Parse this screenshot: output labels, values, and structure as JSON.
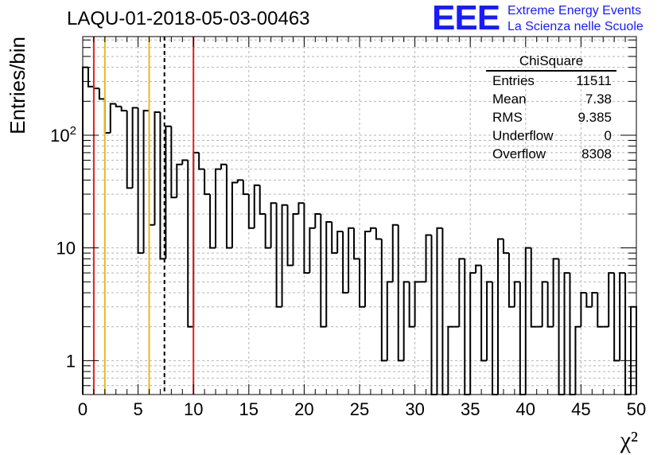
{
  "header": {
    "run_title": "LAQU-01-2018-05-03-00463",
    "logo_mark": "EEE",
    "logo_line1": "Extreme Energy Events",
    "logo_line2": "La Scienza nelle Scuole"
  },
  "stats_box": {
    "title": "ChiSquare",
    "rows": [
      {
        "label": "Entries",
        "value": "11511"
      },
      {
        "label": "Mean",
        "value": "7.38"
      },
      {
        "label": "RMS",
        "value": "9.385"
      },
      {
        "label": "Underflow",
        "value": "0"
      },
      {
        "label": "Overflow",
        "value": "8308"
      }
    ]
  },
  "colors": {
    "histogram": "#000000",
    "red_lines": "#e0201b",
    "yellow_lines": "#e8b820",
    "mean_line": "#000000",
    "grid": "#b4b4b4"
  },
  "chart_data": {
    "type": "histogram",
    "ylabel": "Entries/bin",
    "xlabel": "χ²",
    "xlim": [
      0,
      50
    ],
    "ylim": [
      0.5,
      750
    ],
    "y_scale": "log",
    "grid": true,
    "bin_width": 0.5,
    "x_ticks": [
      0,
      5,
      10,
      15,
      20,
      25,
      30,
      35,
      40,
      45,
      50
    ],
    "y_ticks": [
      {
        "value": 1,
        "label": "1"
      },
      {
        "value": 10,
        "label": "10"
      },
      {
        "value": 100,
        "label": "10",
        "exponent": "2"
      }
    ],
    "values": [
      400,
      270,
      260,
      210,
      105,
      190,
      180,
      165,
      34,
      175,
      9,
      165,
      16,
      160,
      8,
      120,
      28,
      55,
      60,
      2,
      70,
      50,
      30,
      10,
      50,
      55,
      10,
      38,
      40,
      30,
      15,
      36,
      20,
      10,
      25,
      3,
      24,
      7,
      20,
      25,
      6,
      15,
      20,
      2,
      17,
      9,
      14,
      4,
      15,
      8,
      3,
      14,
      15,
      12,
      1,
      5,
      16,
      1,
      5,
      2,
      5,
      5,
      13,
      0,
      15,
      0,
      2,
      2,
      8,
      0,
      6,
      7,
      1,
      5,
      0,
      12,
      9,
      3,
      5,
      0,
      10,
      2,
      2,
      5,
      2,
      8,
      0,
      6,
      0,
      2,
      4,
      3,
      4,
      2,
      2,
      6,
      1,
      6,
      0,
      3
    ],
    "vertical_lines": [
      {
        "x": 1.0,
        "color": "red",
        "style": "solid"
      },
      {
        "x": 2.0,
        "color": "yellow",
        "style": "solid"
      },
      {
        "x": 6.0,
        "color": "yellow",
        "style": "solid"
      },
      {
        "x": 7.38,
        "color": "black",
        "style": "dashed"
      },
      {
        "x": 10.0,
        "color": "red",
        "style": "solid"
      }
    ]
  }
}
